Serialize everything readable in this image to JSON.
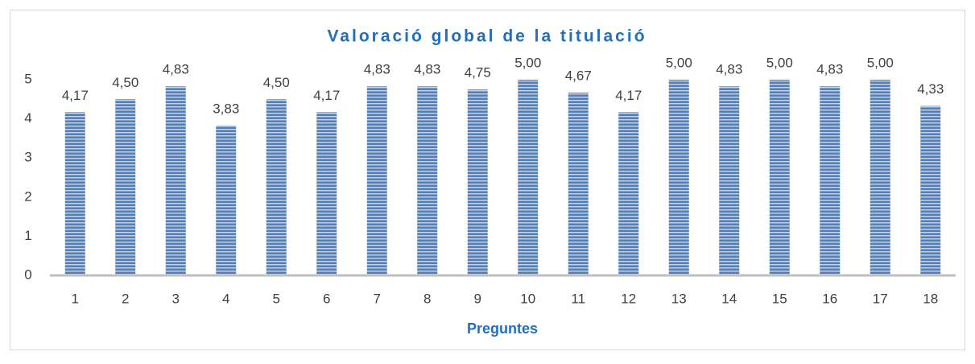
{
  "chart_data": {
    "type": "bar",
    "title": "Valoració global de la titulació",
    "x_label": "Preguntes",
    "categories": [
      "1",
      "2",
      "3",
      "4",
      "5",
      "6",
      "7",
      "8",
      "9",
      "10",
      "11",
      "12",
      "13",
      "14",
      "15",
      "16",
      "17",
      "18"
    ],
    "values": [
      4.17,
      4.5,
      4.83,
      3.83,
      4.5,
      4.17,
      4.83,
      4.83,
      4.75,
      5,
      4.67,
      4.17,
      5,
      4.83,
      5,
      4.83,
      5,
      4.33
    ],
    "value_labels": [
      "4,17",
      "4,50",
      "4,83",
      "3,83",
      "4,50",
      "4,17",
      "4,83",
      "4,83",
      "4,75",
      "5,00",
      "4,67",
      "4,17",
      "5,00",
      "4,83",
      "5,00",
      "4,83",
      "5,00",
      "4,33"
    ],
    "color": "#4f81bd",
    "ylim": [
      0,
      5
    ],
    "yticks": [
      0,
      1,
      2,
      3,
      4,
      5
    ],
    "grid": false
  }
}
